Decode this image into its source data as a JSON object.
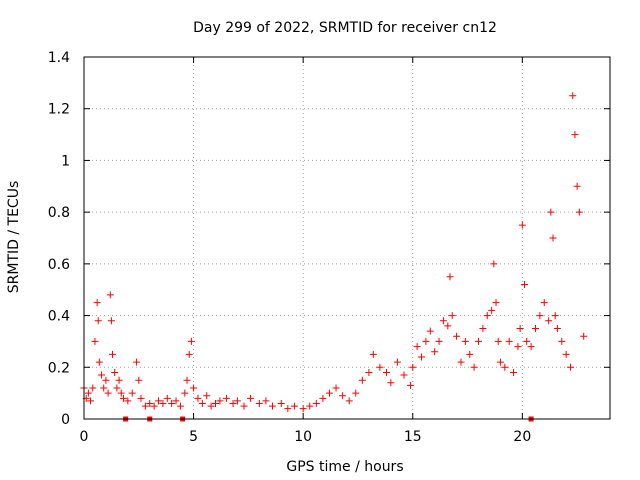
{
  "chart_data": {
    "type": "scatter",
    "title": "Day 299 of 2022, SRMTID for receiver cn12",
    "xlabel": "GPS time / hours",
    "ylabel": "SRMTID / TECUs",
    "xlim": [
      0,
      24
    ],
    "ylim": [
      0,
      1.4
    ],
    "x_ticks": [
      0,
      5,
      10,
      15,
      20
    ],
    "x_tick_labels": [
      "0",
      "5",
      "10",
      "15",
      "20"
    ],
    "y_ticks": [
      0,
      0.2,
      0.4,
      0.6,
      0.8,
      1.0,
      1.2,
      1.4
    ],
    "y_tick_labels": [
      "0",
      "0.2",
      "0.4",
      "0.6",
      "0.8",
      "1",
      "1.2",
      "1.4"
    ],
    "grid": true,
    "marker": "+",
    "color": "#ff0000",
    "gap_markers_x": [
      1.9,
      3.0,
      4.5,
      20.4
    ],
    "series": [
      {
        "name": "SRMTID",
        "x": [
          0.0,
          0.1,
          0.2,
          0.3,
          0.4,
          0.5,
          0.6,
          0.65,
          0.7,
          0.8,
          0.9,
          1.0,
          1.1,
          1.2,
          1.25,
          1.3,
          1.4,
          1.5,
          1.6,
          1.7,
          1.8,
          2.0,
          2.2,
          2.4,
          2.5,
          2.6,
          2.8,
          3.0,
          3.2,
          3.4,
          3.6,
          3.8,
          4.0,
          4.2,
          4.4,
          4.6,
          4.7,
          4.8,
          4.9,
          5.0,
          5.2,
          5.4,
          5.6,
          5.8,
          6.0,
          6.2,
          6.5,
          6.8,
          7.0,
          7.3,
          7.6,
          8.0,
          8.3,
          8.6,
          9.0,
          9.3,
          9.6,
          10.0,
          10.3,
          10.6,
          10.9,
          11.2,
          11.5,
          11.8,
          12.1,
          12.4,
          12.7,
          13.0,
          13.2,
          13.5,
          13.8,
          14.0,
          14.3,
          14.6,
          14.9,
          15.0,
          15.2,
          15.4,
          15.6,
          15.8,
          16.0,
          16.2,
          16.4,
          16.6,
          16.7,
          16.8,
          17.0,
          17.2,
          17.4,
          17.6,
          17.8,
          18.0,
          18.2,
          18.4,
          18.6,
          18.7,
          18.8,
          18.9,
          19.0,
          19.2,
          19.4,
          19.6,
          19.8,
          19.9,
          20.0,
          20.1,
          20.2,
          20.4,
          20.6,
          20.8,
          21.0,
          21.2,
          21.3,
          21.4,
          21.5,
          21.6,
          21.8,
          22.0,
          22.2,
          22.3,
          22.4,
          22.5,
          22.6,
          22.8
        ],
        "y": [
          0.12,
          0.08,
          0.1,
          0.07,
          0.12,
          0.3,
          0.45,
          0.38,
          0.22,
          0.17,
          0.12,
          0.15,
          0.1,
          0.48,
          0.38,
          0.25,
          0.18,
          0.12,
          0.15,
          0.1,
          0.08,
          0.07,
          0.1,
          0.22,
          0.15,
          0.08,
          0.05,
          0.06,
          0.05,
          0.07,
          0.06,
          0.08,
          0.06,
          0.07,
          0.05,
          0.1,
          0.15,
          0.25,
          0.3,
          0.12,
          0.08,
          0.06,
          0.09,
          0.05,
          0.06,
          0.07,
          0.08,
          0.06,
          0.07,
          0.05,
          0.08,
          0.06,
          0.07,
          0.05,
          0.06,
          0.04,
          0.05,
          0.04,
          0.05,
          0.06,
          0.08,
          0.1,
          0.12,
          0.09,
          0.07,
          0.1,
          0.15,
          0.18,
          0.25,
          0.2,
          0.18,
          0.14,
          0.22,
          0.17,
          0.13,
          0.2,
          0.28,
          0.24,
          0.3,
          0.34,
          0.26,
          0.3,
          0.38,
          0.36,
          0.55,
          0.4,
          0.32,
          0.22,
          0.3,
          0.25,
          0.2,
          0.3,
          0.35,
          0.4,
          0.42,
          0.6,
          0.45,
          0.3,
          0.22,
          0.2,
          0.3,
          0.18,
          0.28,
          0.35,
          0.75,
          0.52,
          0.3,
          0.28,
          0.35,
          0.4,
          0.45,
          0.38,
          0.8,
          0.7,
          0.4,
          0.35,
          0.3,
          0.25,
          0.2,
          1.25,
          1.1,
          0.9,
          0.8,
          0.32
        ]
      }
    ]
  }
}
